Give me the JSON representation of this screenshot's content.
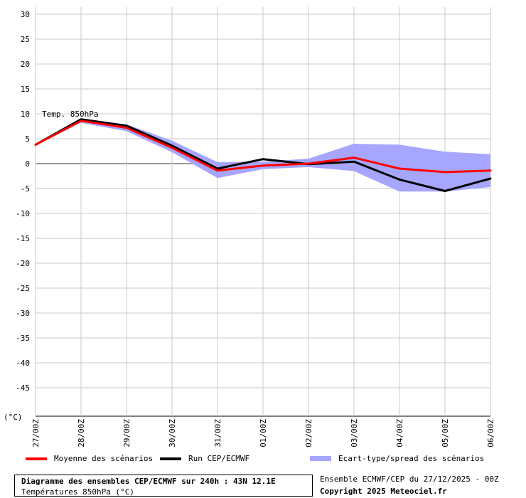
{
  "chart_data": {
    "type": "line",
    "annotation": "Temp. 850hPa",
    "unit_label": "(°C)",
    "ylim": [
      -50,
      30
    ],
    "yticks": [
      30,
      25,
      20,
      15,
      10,
      5,
      0,
      -5,
      -10,
      -15,
      -20,
      -25,
      -30,
      -35,
      -40,
      -45
    ],
    "categories": [
      "27/00Z",
      "28/00Z",
      "29/00Z",
      "30/00Z",
      "31/00Z",
      "01/00Z",
      "02/00Z",
      "03/00Z",
      "04/00Z",
      "05/00Z",
      "06/00Z"
    ],
    "grid": true,
    "series": [
      {
        "name": "Moyenne des scénarios",
        "color": "#ff0000",
        "x": [
          0,
          1,
          2,
          3,
          4,
          5,
          6,
          7,
          8,
          9,
          10
        ],
        "values": [
          3.8,
          8.6,
          7.2,
          3.2,
          -1.4,
          -0.4,
          0.0,
          1.2,
          -1.0,
          -1.7,
          -1.4
        ]
      },
      {
        "name": "Run CEP/ECMWF",
        "color": "#000000",
        "x": [
          0,
          1,
          2,
          3,
          4,
          5,
          6,
          7,
          8,
          9,
          10
        ],
        "values": [
          3.8,
          8.9,
          7.6,
          3.6,
          -1.0,
          0.9,
          -0.1,
          0.4,
          -3.2,
          -5.5,
          -3.0
        ]
      },
      {
        "name": "Ecart-type/spread des scénarios",
        "color": "#a6a6ff",
        "type": "band",
        "x": [
          0,
          1,
          2,
          3,
          4,
          5,
          6,
          7,
          8,
          9,
          10
        ],
        "upper": [
          4.0,
          9.0,
          7.9,
          4.6,
          0.3,
          0.4,
          1.0,
          4.0,
          3.8,
          2.4,
          1.9
        ],
        "lower": [
          3.6,
          8.2,
          6.5,
          2.3,
          -2.9,
          -1.1,
          -0.7,
          -1.5,
          -5.6,
          -5.6,
          -4.7
        ]
      }
    ]
  },
  "title_box": {
    "line1": "Diagramme des ensembles CEP/ECMWF sur 240h : 43N 12.1E",
    "line2": "Températures 850hPa (°C)"
  },
  "info": {
    "line1": "Ensemble ECMWF/CEP du 27/12/2025 - 00Z",
    "line2": "Copyright 2025 Meteociel.fr"
  }
}
